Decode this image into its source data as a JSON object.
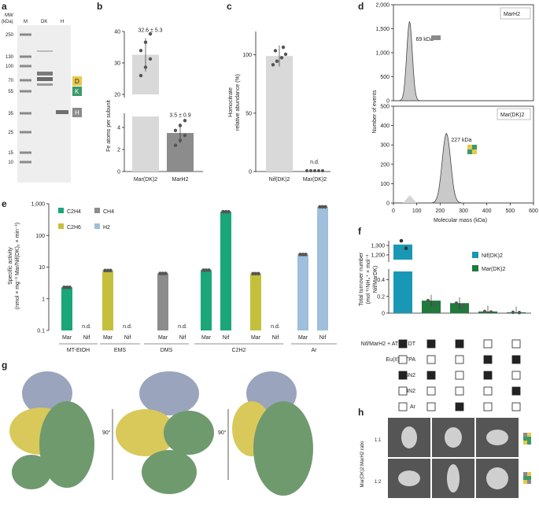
{
  "panels": {
    "a": {
      "letter": "a",
      "mw_label_line1": "MW",
      "mw_label_line2": "(kDa)",
      "lanes": [
        "M",
        "DK",
        "H"
      ],
      "ladder": [
        "250",
        "130",
        "100",
        "70",
        "55",
        "35",
        "25",
        "15",
        "10"
      ],
      "tags": [
        "D",
        "K",
        "H"
      ],
      "colors": {
        "D": "#e8c84a",
        "K": "#3c9a6a",
        "H": "#8a8a8a"
      }
    },
    "b": {
      "letter": "b",
      "ylabel": "Fe atoms per subunit",
      "ann1": "32.6 ± 5.3",
      "ann2": "3.5 ± 0.9"
    },
    "c": {
      "letter": "c",
      "ylabel1": "Homocitrate",
      "ylabel2": "relative abundance (%)",
      "nd": "n.d."
    },
    "d": {
      "letter": "d",
      "ylabel": "Number of events",
      "xlabel": "Molecular mass (kDa)",
      "top_tag": "MarH2",
      "top_kda": "69 kDa",
      "bottom_tag": "Mar(DK)2",
      "bottom_kda": "227 kDa"
    },
    "e": {
      "letter": "e",
      "ylabel1": "Specific activity",
      "ylabel2": "(nmol × mg⁻¹ Mar/Nif(DK)₂ × min⁻¹)",
      "nd": "n.d.",
      "legend": [
        "C2H4",
        "CH4",
        "C2H6",
        "H2"
      ],
      "groups": [
        "MT-EtOH",
        "EMS",
        "DMS",
        "C2H2",
        "Ar"
      ]
    },
    "f": {
      "letter": "f",
      "ylabel1": "Total turnover number",
      "ylabel2": "(mol ¹⁵NH₄⁺ × mol⁻¹",
      "ylabel3": "Nif/MarDK)",
      "legend": [
        "Nif(DK)2",
        "Mar(DK)2"
      ],
      "conditions": [
        "Nif/MarH2 + ATP + DT",
        "Eu(II)-DTPA",
        "15N2",
        "14N2",
        "Ar"
      ],
      "grid": [
        [
          1,
          1,
          1,
          0,
          0
        ],
        [
          0,
          0,
          0,
          1,
          1
        ],
        [
          1,
          1,
          0,
          1,
          0
        ],
        [
          0,
          0,
          0,
          0,
          1
        ],
        [
          0,
          0,
          1,
          0,
          0
        ]
      ]
    },
    "g": {
      "letter": "g",
      "rot1": "90°",
      "rot2": "90°"
    },
    "h": {
      "letter": "h",
      "ylabel": "Mar(DK)2:MarH2 ratio",
      "rows": [
        "1:1",
        "1:2"
      ]
    }
  },
  "chart_data": [
    {
      "type": "bar",
      "panel": "b",
      "categories": [
        "Mar(DK)2",
        "MarH2"
      ],
      "values": [
        32.6,
        3.5
      ],
      "errors": [
        5.3,
        0.9
      ],
      "ylim": [
        0,
        40
      ],
      "yticks": [
        0,
        2,
        4,
        20,
        30,
        40
      ],
      "ytick_labels": [
        "0",
        "2",
        "4",
        "20",
        "30",
        "40"
      ],
      "axis_break": [
        5,
        20
      ],
      "colors": [
        "#d9d9d9",
        "#8c8c8c"
      ]
    },
    {
      "type": "bar",
      "panel": "c",
      "categories": [
        "Nif(DK)2",
        "Mar(DK)2"
      ],
      "values": [
        99,
        0
      ],
      "errors": [
        9,
        0
      ],
      "ylim": [
        0,
        120
      ],
      "yticks": [
        0,
        50,
        100
      ],
      "ytick_labels": [
        "0",
        "50",
        "100"
      ],
      "colors": [
        "#d9d9d9",
        "#8c8c8c"
      ]
    },
    {
      "type": "area",
      "panel": "d",
      "subplots": [
        {
          "peak_kda": 69,
          "peak_count": 1650,
          "ylim": [
            0,
            2000
          ],
          "yticks": [
            0,
            500,
            1000,
            1500,
            2000
          ],
          "ytick_labels": [
            "0",
            "500",
            "1,000",
            "1,500",
            "2,000"
          ]
        },
        {
          "peak_kda": 227,
          "peak_count": 360,
          "ylim": [
            0,
            500
          ],
          "yticks": [
            0,
            100,
            200,
            300,
            400,
            500
          ],
          "ytick_labels": [
            "0",
            "100",
            "200",
            "300",
            "400",
            "500"
          ]
        }
      ],
      "xlim": [
        0,
        600
      ],
      "xticks": [
        0,
        100,
        200,
        300,
        400,
        500,
        600
      ]
    },
    {
      "type": "bar",
      "panel": "e",
      "log_y": true,
      "ylim": [
        0.1,
        1000
      ],
      "yticks": [
        0.1,
        1,
        10,
        100,
        1000
      ],
      "ytick_labels": [
        "0.1",
        "1",
        "10",
        "100",
        "1,000"
      ],
      "bars": [
        {
          "group": "MT-EtOH",
          "label": "Mar",
          "substrate": "C2H4",
          "value": 2.3
        },
        {
          "group": "MT-EtOH",
          "label": "Nif",
          "substrate": "C2H4",
          "value": null
        },
        {
          "group": "EMS",
          "label": "Mar",
          "substrate": "C2H6",
          "value": 7.8
        },
        {
          "group": "EMS",
          "label": "Nif",
          "substrate": "C2H6",
          "value": null
        },
        {
          "group": "DMS",
          "label": "Mar",
          "substrate": "CH4",
          "value": 6.3
        },
        {
          "group": "DMS",
          "label": "Nif",
          "substrate": "CH4",
          "value": null
        },
        {
          "group": "C2H2",
          "label": "Mar",
          "substrate": "C2H4",
          "value": 8.0
        },
        {
          "group": "C2H2",
          "label": "Nif",
          "substrate": "C2H4",
          "value": 560
        },
        {
          "group": "C2H2",
          "label": "Mar",
          "substrate": "C2H6",
          "value": 6.2
        },
        {
          "group": "C2H2",
          "label": "Nif",
          "substrate": "C2H6",
          "value": null
        },
        {
          "group": "Ar",
          "label": "Mar",
          "substrate": "H2",
          "value": 25
        },
        {
          "group": "Ar",
          "label": "Nif",
          "substrate": "H2",
          "value": 800
        }
      ],
      "colors": {
        "C2H4": "#1aa679",
        "CH4": "#8c8c8c",
        "C2H6": "#c5c03c",
        "H2": "#9fbfdc"
      }
    },
    {
      "type": "bar",
      "panel": "f",
      "yticks": [
        0,
        0.2,
        0.4,
        1200,
        1300
      ],
      "ytick_labels": [
        "0",
        "0.2",
        "0.4",
        "1,200",
        "1,300"
      ],
      "axis_break": [
        0.5,
        1150
      ],
      "series": [
        {
          "name": "Nif(DK)2",
          "values": [
            1310,
            0,
            0,
            0,
            0
          ],
          "color": "#1898b4"
        },
        {
          "name": "Mar(DK)2",
          "values": [
            0,
            0.15,
            0.12,
            0.02,
            0.01
          ],
          "color": "#1f7a3c"
        }
      ]
    }
  ]
}
